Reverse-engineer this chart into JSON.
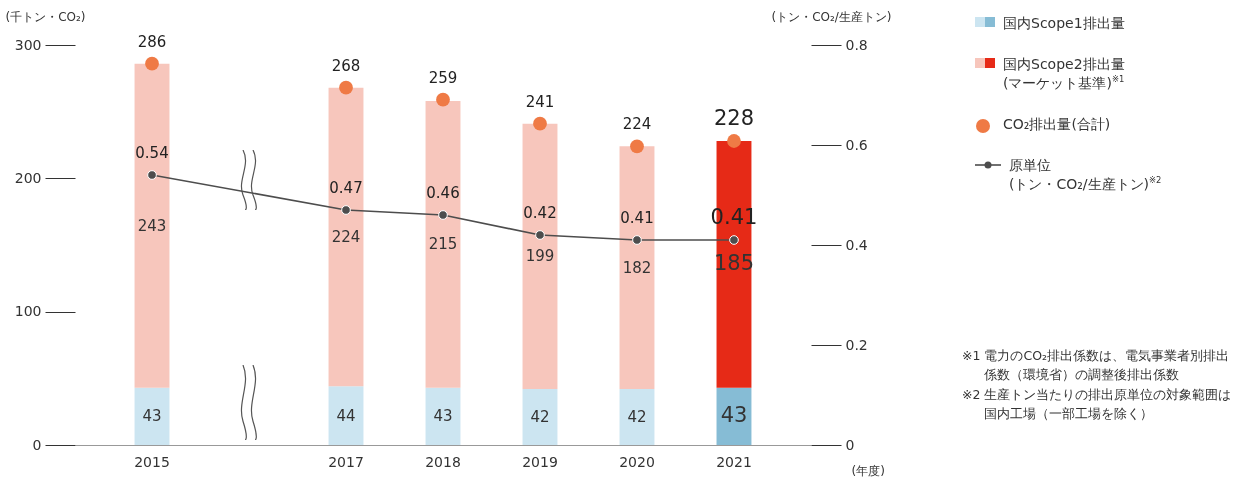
{
  "chart_data": {
    "type": "bar",
    "stacked": true,
    "data_labels": true,
    "marker": "circle",
    "legend": "top right",
    "ylabel": "(千トン・CO₂)",
    "y2label": "(トン・CO₂/生産トン)",
    "xlabel": "(年度)",
    "categories": [
      "2015",
      null,
      "2017",
      "2018",
      "2019",
      "2020",
      "2021"
    ],
    "ylim": [
      0,
      300
    ],
    "yticks": [
      0,
      100,
      200,
      300
    ],
    "y2lim": [
      0,
      0.8
    ],
    "y2ticks": [
      0,
      0.2,
      0.4,
      0.6,
      0.8
    ],
    "series": [
      {
        "name": "国内Scope1排出量",
        "color": "#cce5f1",
        "colors": [
          "#cce5f1",
          null,
          "#cce5f1",
          "#cce5f1",
          "#cce5f1",
          "#cce5f1",
          "#86bcd5"
        ],
        "values": [
          43,
          null,
          44,
          43,
          42,
          42,
          43
        ]
      },
      {
        "name": "国内Scope2排出量\n(マーケット基準)$^{※1}$",
        "color": "#f7c6bc",
        "colors": [
          "#f7c6bc",
          null,
          "#f7c6bc",
          "#f7c6bc",
          "#f7c6bc",
          "#f7c6bc",
          "#e62a17"
        ],
        "values": [
          243,
          null,
          224,
          215,
          199,
          182,
          185
        ]
      },
      {
        "name": "CO₂排出量(合計)",
        "type": "scatter",
        "color": "#ef7a45",
        "values": [
          286,
          null,
          268,
          259,
          241,
          224,
          228
        ]
      },
      {
        "name": "原単位\n(トン・CO₂/生産トン)$^{※2}$",
        "type": "line",
        "axis": "y2",
        "color": "#4d4d4d",
        "values": [
          0.54,
          null,
          0.47,
          0.46,
          0.42,
          0.41,
          0.41
        ]
      }
    ],
    "annotations": [
      "※1 電力のCO₂排出係数は、電気事業者別排出係数（環境省）の調整後排出係数",
      "※2 生産トン当たりの排出原単位の対象範囲は国内工場（一部工場を除く）"
    ]
  }
}
